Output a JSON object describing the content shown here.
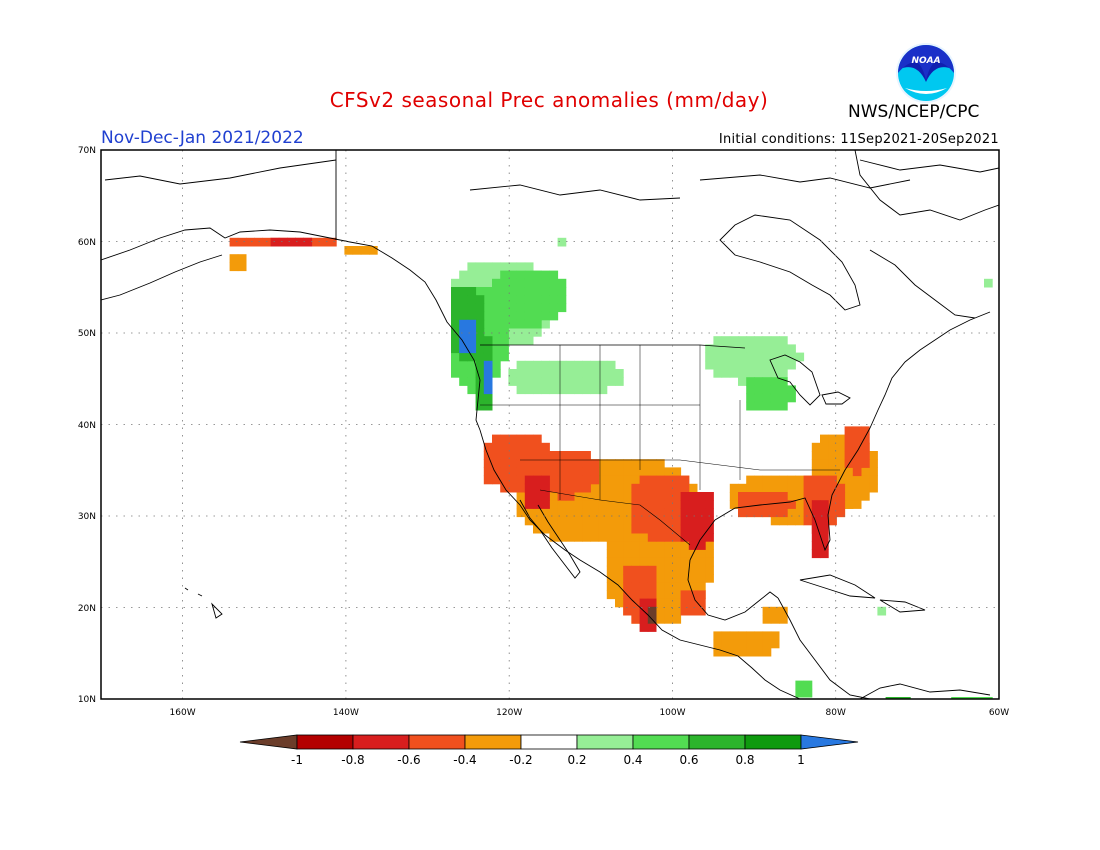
{
  "header": {
    "title": "CFSv2 seasonal Prec anomalies (mm/day)",
    "season": "Nov-Dec-Jan 2021/2022",
    "initial_conditions": "Initial conditions: 11Sep2021-20Sep2021",
    "credit": "NWS/NCEP/CPC",
    "logo_text": "NOAA",
    "logo_icon": "noaa-logo-icon"
  },
  "map": {
    "lon_range": [
      -170,
      -60
    ],
    "lat_range": [
      10,
      70
    ],
    "lat_ticks": [
      "10N",
      "20N",
      "30N",
      "40N",
      "50N",
      "60N",
      "70N"
    ],
    "lon_ticks": [
      "160W",
      "140W",
      "120W",
      "100W",
      "80W",
      "60W"
    ],
    "grid": "dotted"
  },
  "colorbar": {
    "labels": [
      "-1",
      "-0.8",
      "-0.6",
      "-0.4",
      "-0.2",
      "0.2",
      "0.4",
      "0.6",
      "0.8",
      "1"
    ],
    "colors": {
      "lt_neg1": "#6b3d2a",
      "neg1_neg08": "#b30000",
      "neg08_neg06": "#d81e1e",
      "neg06_neg04": "#f0501e",
      "neg04_neg02": "#f39b0a",
      "neg02_02": "#ffffff",
      "p02_04": "#96ee96",
      "p04_06": "#52dc52",
      "p06_08": "#2cb42c",
      "p08_1": "#0e9a0e",
      "gt1": "#2878e0"
    }
  }
}
